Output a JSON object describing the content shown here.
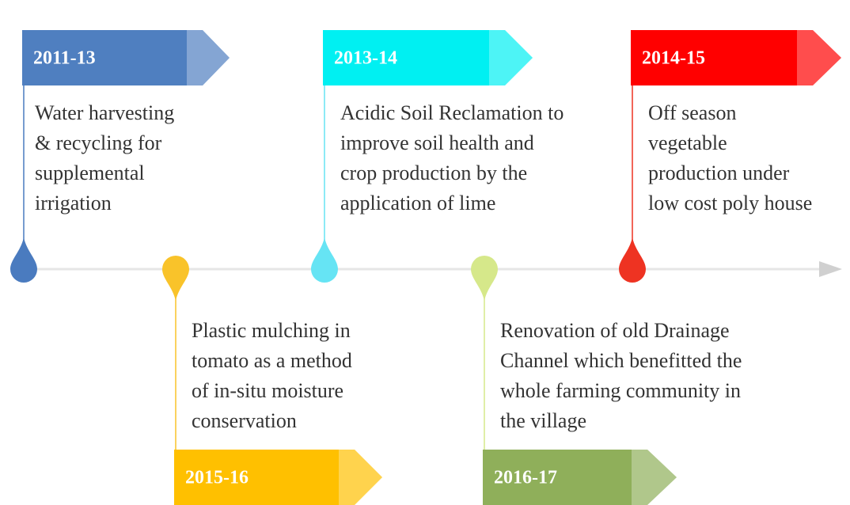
{
  "items": [
    {
      "year": "2011-13",
      "color": "#4f7fc0",
      "drop_color": "#4a7bbf",
      "lines": [
        "Water harvesting",
        "& recycling for",
        "supplemental",
        "irrigation"
      ]
    },
    {
      "year": "2013-14",
      "color": "#00f0f2",
      "drop_color": "#66e4f4",
      "lines": [
        "Acidic Soil Reclamation to",
        "improve soil health and",
        "crop production by the",
        "application of lime"
      ]
    },
    {
      "year": "2014-15",
      "color": "#ff0000",
      "drop_color": "#ee3322",
      "lines": [
        "Off season",
        "vegetable",
        "production under",
        "low cost poly house"
      ]
    },
    {
      "year": "2015-16",
      "color": "#ffc000",
      "drop_color": "#f9c32a",
      "lines": [
        "Plastic mulching in",
        "tomato as a method",
        "of in-situ moisture",
        "conservation"
      ]
    },
    {
      "year": "2016-17",
      "color": "#8faf5a",
      "drop_color": "#d6e88a",
      "lines": [
        "Renovation of old Drainage",
        "Channel which benefitted the",
        "whole farming community in",
        "the village"
      ]
    }
  ]
}
